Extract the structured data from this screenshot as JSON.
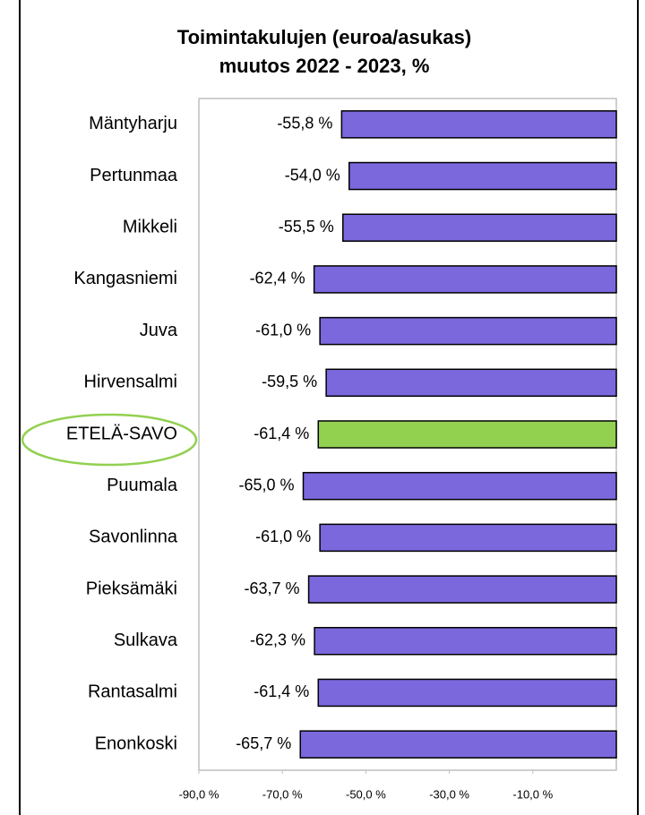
{
  "chart_data": {
    "type": "bar",
    "orientation": "horizontal",
    "title": "Toimintakulujen (euroa/asukas)",
    "subtitle": "muutos 2022 - 2023, %",
    "categories": [
      "Mäntyharju",
      "Pertunmaa",
      "Mikkeli",
      "Kangasniemi",
      "Juva",
      "Hirvensalmi",
      "ETELÄ-SAVO",
      "Puumala",
      "Savonlinna",
      "Pieksämäki",
      "Sulkava",
      "Rantasalmi",
      "Enonkoski"
    ],
    "values": [
      -55.8,
      -54.0,
      -55.5,
      -62.4,
      -61.0,
      -59.5,
      -61.4,
      -65.0,
      -61.0,
      -63.7,
      -62.3,
      -61.4,
      -65.7
    ],
    "value_labels": [
      "-55,8 %",
      "-54,0 %",
      "-55,5 %",
      "-62,4 %",
      "-61,0 %",
      "-59,5 %",
      "-61,4 %",
      "-65,0 %",
      "-61,0 %",
      "-63,7 %",
      "-62,3 %",
      "-61,4 %",
      "-65,7 %"
    ],
    "colors": [
      "#7b68dd",
      "#7b68dd",
      "#7b68dd",
      "#7b68dd",
      "#7b68dd",
      "#7b68dd",
      "#92d050",
      "#7b68dd",
      "#7b68dd",
      "#7b68dd",
      "#7b68dd",
      "#7b68dd",
      "#7b68dd"
    ],
    "xlim": [
      -90,
      10
    ],
    "xticks": [
      {
        "value": -90,
        "label": "-90,0 %"
      },
      {
        "value": -70,
        "label": "-70,0 %"
      },
      {
        "value": -50,
        "label": "-50,0 %"
      },
      {
        "value": -30,
        "label": "-30,0 %"
      },
      {
        "value": -10,
        "label": "-10,0 %"
      }
    ],
    "grid": false
  }
}
